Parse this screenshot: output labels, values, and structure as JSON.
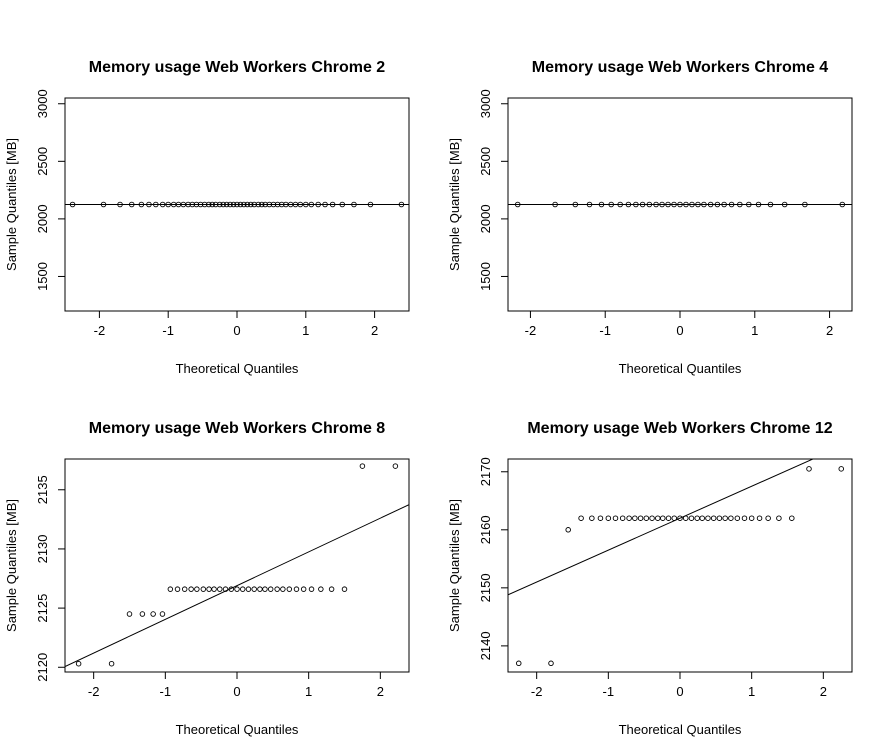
{
  "chart_data": [
    {
      "type": "scatter",
      "subtype": "qq-plot",
      "title": "Memory usage Web Workers Chrome  2",
      "xlabel": "Theoretical Quantiles",
      "ylabel": "Sample Quantiles [MB]",
      "xlim": [
        -2.5,
        2.5
      ],
      "ylim": [
        1200,
        3050
      ],
      "xticks": [
        -2,
        -1,
        0,
        1,
        2
      ],
      "yticks": [
        1500,
        2000,
        2500,
        3000
      ],
      "x": [
        -2.39,
        -1.94,
        -1.7,
        -1.53,
        -1.39,
        -1.28,
        -1.18,
        -1.08,
        -1.0,
        -0.92,
        -0.85,
        -0.78,
        -0.71,
        -0.65,
        -0.59,
        -0.53,
        -0.47,
        -0.41,
        -0.36,
        -0.31,
        -0.25,
        -0.2,
        -0.15,
        -0.1,
        -0.05,
        0.0,
        0.05,
        0.1,
        0.15,
        0.2,
        0.25,
        0.31,
        0.36,
        0.41,
        0.47,
        0.53,
        0.59,
        0.65,
        0.71,
        0.78,
        0.85,
        0.92,
        1.0,
        1.08,
        1.18,
        1.28,
        1.39,
        1.53,
        1.7,
        1.94,
        2.39
      ],
      "y": [
        2125,
        2125,
        2125,
        2125,
        2125,
        2125,
        2125,
        2125,
        2125,
        2125,
        2125,
        2125,
        2125,
        2125,
        2125,
        2125,
        2125,
        2125,
        2125,
        2125,
        2125,
        2125,
        2125,
        2125,
        2125,
        2125,
        2125,
        2125,
        2125,
        2125,
        2125,
        2125,
        2125,
        2125,
        2125,
        2125,
        2125,
        2125,
        2125,
        2125,
        2125,
        2125,
        2125,
        2125,
        2125,
        2125,
        2125,
        2125,
        2125,
        2125,
        2125
      ],
      "qqline": {
        "intercept": 2125,
        "slope": 0
      }
    },
    {
      "type": "scatter",
      "subtype": "qq-plot",
      "title": "Memory usage Web Workers Chrome  4",
      "xlabel": "Theoretical Quantiles",
      "ylabel": "Sample Quantiles [MB]",
      "xlim": [
        -2.3,
        2.3
      ],
      "ylim": [
        1200,
        3050
      ],
      "xticks": [
        -2,
        -1,
        0,
        1,
        2
      ],
      "yticks": [
        1500,
        2000,
        2500,
        3000
      ],
      "x": [
        -2.17,
        -1.67,
        -1.4,
        -1.21,
        -1.05,
        -0.92,
        -0.8,
        -0.69,
        -0.59,
        -0.5,
        -0.41,
        -0.32,
        -0.24,
        -0.16,
        -0.08,
        0.0,
        0.08,
        0.16,
        0.24,
        0.32,
        0.41,
        0.5,
        0.59,
        0.69,
        0.8,
        0.92,
        1.05,
        1.21,
        1.4,
        1.67,
        2.17
      ],
      "y": [
        2125,
        2125,
        2125,
        2125,
        2125,
        2125,
        2125,
        2125,
        2125,
        2125,
        2125,
        2125,
        2125,
        2125,
        2125,
        2125,
        2125,
        2125,
        2125,
        2125,
        2125,
        2125,
        2125,
        2125,
        2125,
        2125,
        2125,
        2125,
        2125,
        2125,
        2125
      ],
      "qqline": {
        "intercept": 2125,
        "slope": 0
      }
    },
    {
      "type": "scatter",
      "subtype": "qq-plot",
      "title": "Memory usage Web Workers Chrome  8",
      "xlabel": "Theoretical Quantiles",
      "ylabel": "Sample Quantiles [MB]",
      "xlim": [
        -2.4,
        2.4
      ],
      "ylim": [
        2119.6,
        2137.6
      ],
      "xticks": [
        -2,
        -1,
        0,
        1,
        2
      ],
      "yticks": [
        2120,
        2125,
        2130,
        2135
      ],
      "x": [
        -2.21,
        -1.75,
        -1.5,
        -1.32,
        -1.17,
        -1.04,
        -0.93,
        -0.83,
        -0.73,
        -0.64,
        -0.56,
        -0.47,
        -0.39,
        -0.32,
        -0.24,
        -0.16,
        -0.08,
        0.0,
        0.08,
        0.16,
        0.24,
        0.32,
        0.39,
        0.47,
        0.56,
        0.64,
        0.73,
        0.83,
        0.93,
        1.04,
        1.17,
        1.32,
        1.5,
        1.75,
        2.21
      ],
      "y": [
        2120.3,
        2120.3,
        2124.5,
        2124.5,
        2124.5,
        2124.5,
        2126.6,
        2126.6,
        2126.6,
        2126.6,
        2126.6,
        2126.6,
        2126.6,
        2126.6,
        2126.6,
        2126.6,
        2126.6,
        2126.6,
        2126.6,
        2126.6,
        2126.6,
        2126.6,
        2126.6,
        2126.6,
        2126.6,
        2126.6,
        2126.6,
        2126.6,
        2126.6,
        2126.6,
        2126.6,
        2126.6,
        2126.6,
        2137.0,
        2137.0
      ],
      "qqline": {
        "intercept": 2126.9,
        "slope": 2.85
      }
    },
    {
      "type": "scatter",
      "subtype": "qq-plot",
      "title": "Memory usage Web Workers Chrome  12",
      "xlabel": "Theoretical Quantiles",
      "ylabel": "Sample Quantiles [MB]",
      "xlim": [
        -2.4,
        2.4
      ],
      "ylim": [
        2135.5,
        2172.2
      ],
      "xticks": [
        -2,
        -1,
        0,
        1,
        2
      ],
      "yticks": [
        2140,
        2150,
        2160,
        2170
      ],
      "x": [
        -2.25,
        -1.8,
        -1.56,
        -1.38,
        -1.23,
        -1.11,
        -1.0,
        -0.9,
        -0.8,
        -0.71,
        -0.63,
        -0.55,
        -0.47,
        -0.39,
        -0.31,
        -0.24,
        -0.16,
        -0.08,
        0.0,
        0.08,
        0.16,
        0.24,
        0.31,
        0.39,
        0.47,
        0.55,
        0.63,
        0.71,
        0.8,
        0.9,
        1.0,
        1.11,
        1.23,
        1.38,
        1.56,
        1.8,
        2.25
      ],
      "y": [
        2137,
        2137,
        2160,
        2162,
        2162,
        2162,
        2162,
        2162,
        2162,
        2162,
        2162,
        2162,
        2162,
        2162,
        2162,
        2162,
        2162,
        2162,
        2162,
        2162,
        2162,
        2162,
        2162,
        2162,
        2162,
        2162,
        2162,
        2162,
        2162,
        2162,
        2162,
        2162,
        2162,
        2162,
        2162,
        2170.5,
        2170.5
      ],
      "qqline": {
        "intercept": 2162,
        "slope": 5.5
      }
    }
  ]
}
